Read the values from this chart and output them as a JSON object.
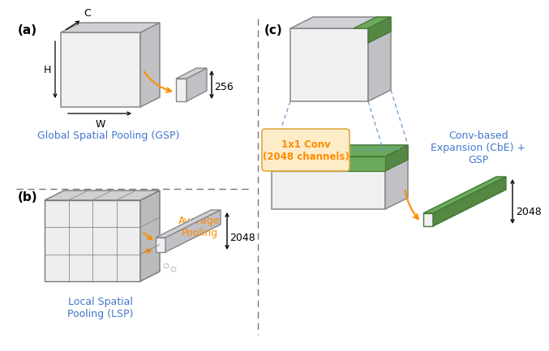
{
  "bg": "#ffffff",
  "label_a": "(a)",
  "label_b": "(b)",
  "label_c": "(c)",
  "text_gsp": "Global Spatial Pooling (GSP)",
  "text_lsp": "Local Spatial\nPooling (LSP)",
  "text_avg": "Average\nPooling",
  "text_256": "256",
  "text_2048_b": "2048",
  "text_2048_c": "2048",
  "text_conv": "1x1 Conv\n(2048 channels)",
  "text_cbe": "Conv-based\nExpansion (CbE) +\nGSP",
  "text_C": "C",
  "text_H": "H",
  "text_W": "W",
  "col_blue": "#4477cc",
  "col_orange": "#ff8c00",
  "col_green": "#6aaa5a",
  "col_green_side": "#558844",
  "col_green_dark": "#447733",
  "col_face": "#f0f0f2",
  "col_top": "#d0d0d5",
  "col_side": "#c0c0c5",
  "col_edge": "#888888",
  "col_grid_edge": "#777777",
  "col_conv_bg": "#fdecc8",
  "col_conv_border": "#ddaa44",
  "col_dashed": "#6699cc",
  "col_arrow_head": "#ff8c00"
}
